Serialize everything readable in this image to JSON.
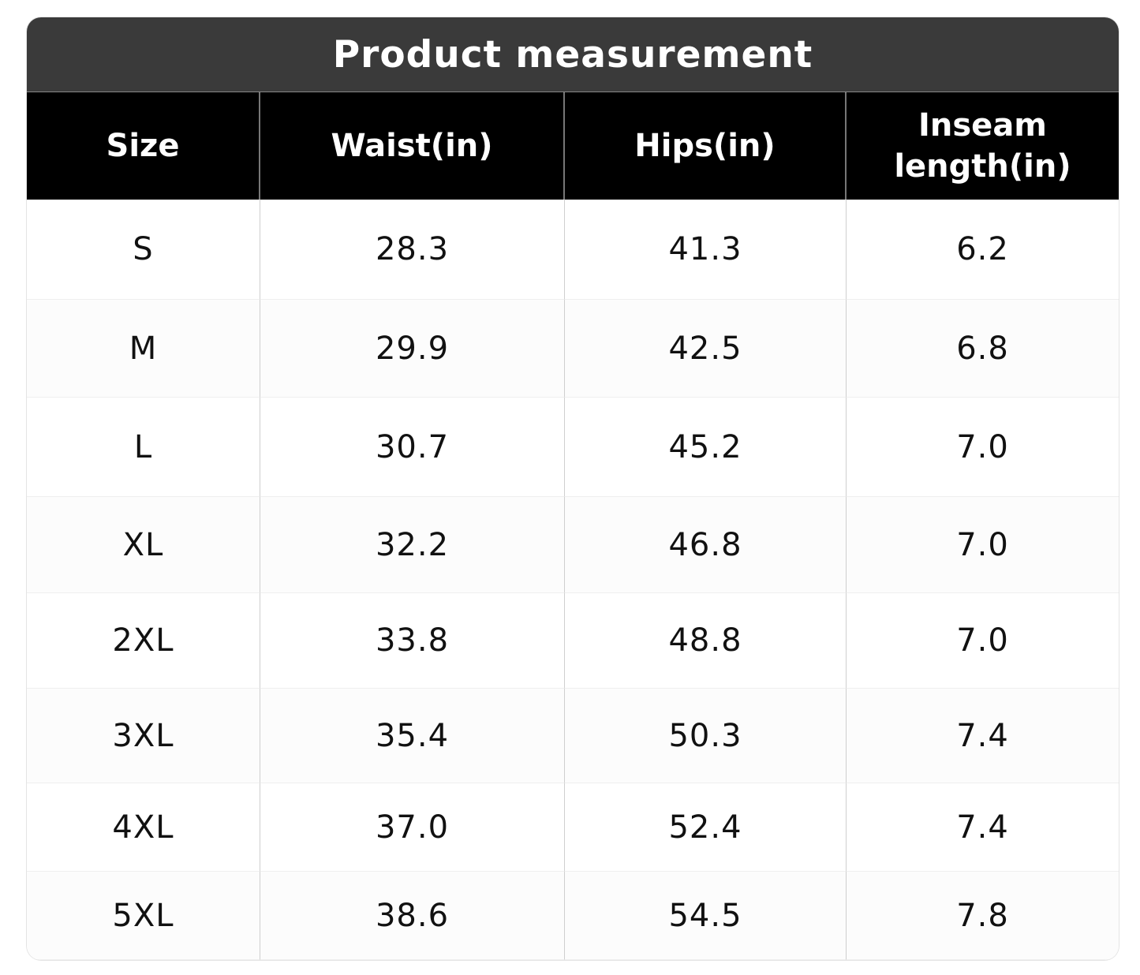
{
  "title": "Product measurement",
  "table": {
    "columns": [
      "Size",
      "Waist(in)",
      "Hips(in)",
      "Inseam length(in)"
    ],
    "rows": [
      [
        "S",
        "28.3",
        "41.3",
        "6.2"
      ],
      [
        "M",
        "29.9",
        "42.5",
        "6.8"
      ],
      [
        "L",
        "30.7",
        "45.2",
        "7.0"
      ],
      [
        "XL",
        "32.2",
        "46.8",
        "7.0"
      ],
      [
        "2XL",
        "33.8",
        "48.8",
        "7.0"
      ],
      [
        "3XL",
        "35.4",
        "50.3",
        "7.4"
      ],
      [
        "4XL",
        "37.0",
        "52.4",
        "7.4"
      ],
      [
        "5XL",
        "38.6",
        "54.5",
        "7.8"
      ]
    ]
  }
}
